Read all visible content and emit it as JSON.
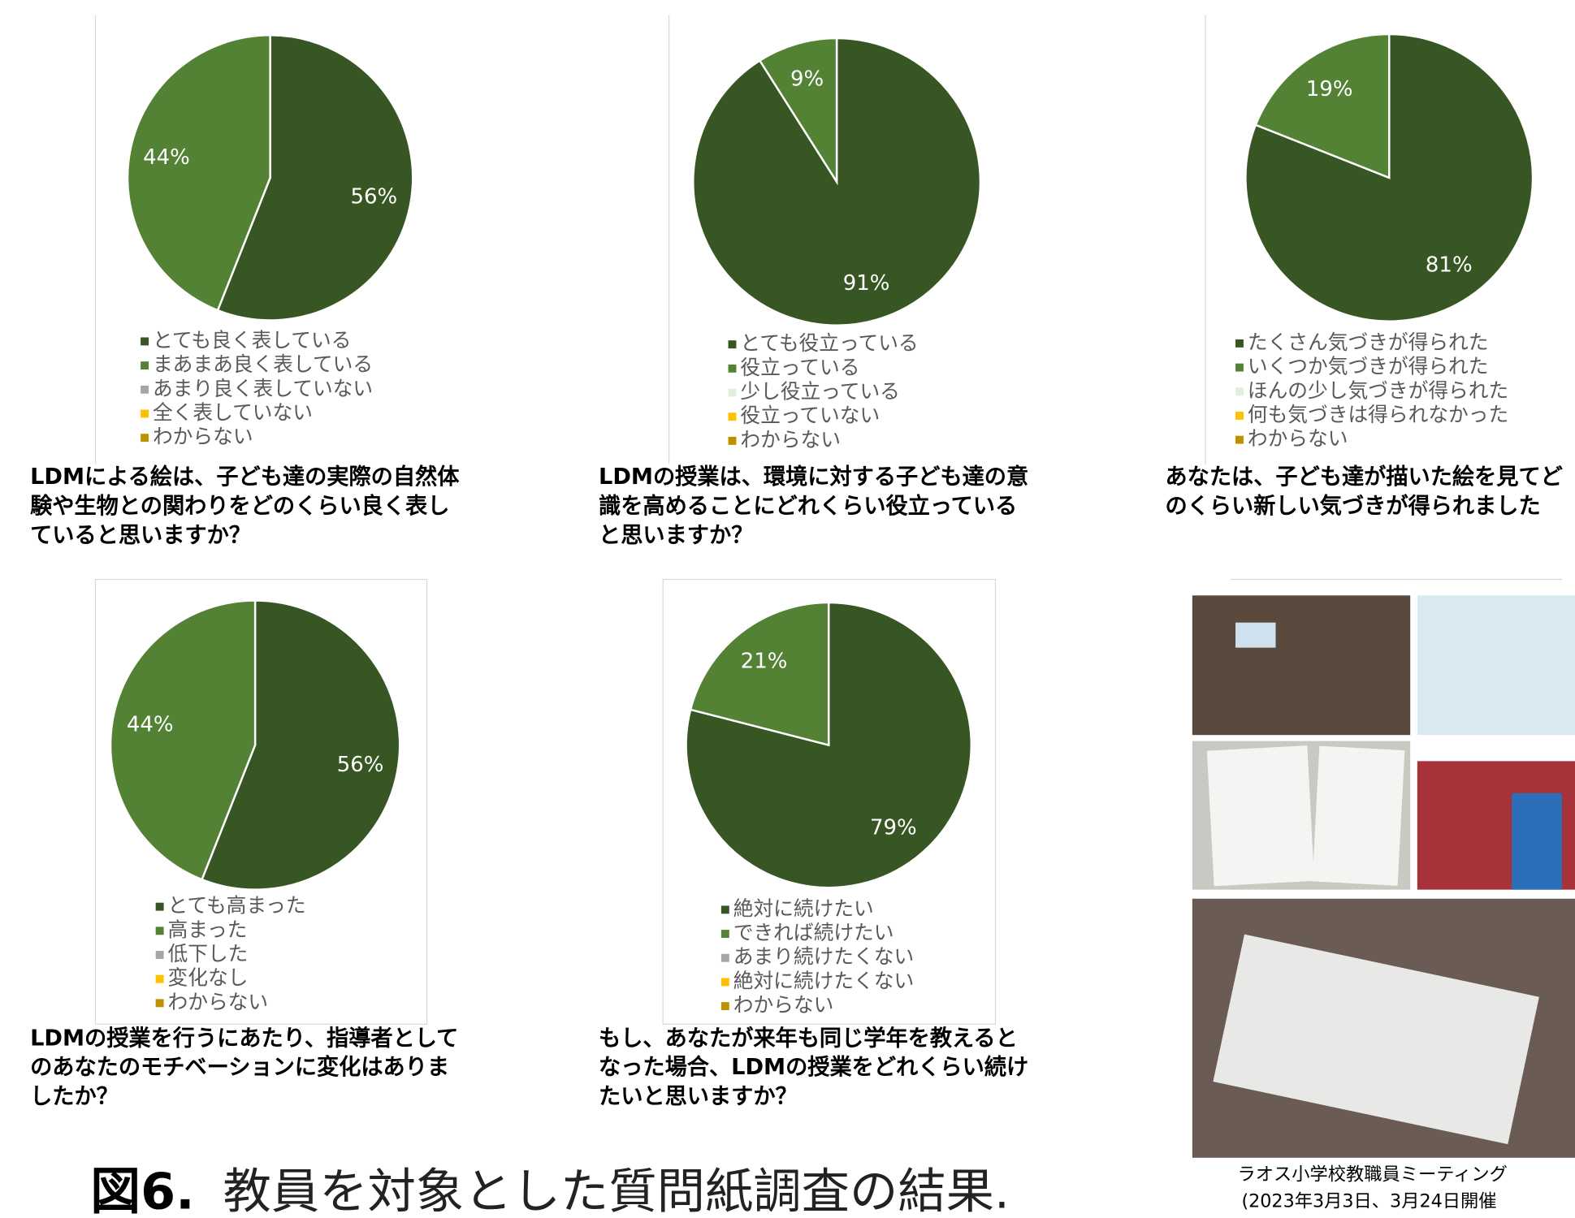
{
  "chart_data": [
    {
      "type": "pie",
      "title": [
        "LDMによる絵は、子ども達の実際の自然体",
        "験や生物との関わりをどのくらい良く表し",
        "ていると思いますか？"
      ],
      "categories": [
        "とても良く表している",
        "まあまあ良く表している",
        "あまり良く表していない",
        "全く表していない",
        "わからない"
      ],
      "values": [
        56,
        44,
        0,
        0,
        0
      ],
      "value_labels": [
        "56%",
        "44%",
        null,
        null,
        null
      ],
      "colors": [
        "#375623",
        "#548235",
        "#a5a5a5",
        "#ffc000",
        "#bf9000"
      ]
    },
    {
      "type": "pie",
      "title": [
        "LDMの授業は、環境に対する子ども達の意",
        "識を高めることにどれくらい役立っている",
        "と思いますか？"
      ],
      "categories": [
        "とても役立っている",
        "役立っている",
        "少し役立っている",
        "役立っていない",
        "わからない"
      ],
      "values": [
        91,
        9,
        0,
        0,
        0
      ],
      "value_labels": [
        "91%",
        "9%",
        null,
        null,
        null
      ],
      "colors": [
        "#375623",
        "#548235",
        "#e2efda",
        "#ffc000",
        "#bf9000"
      ]
    },
    {
      "type": "pie",
      "title": [
        "あなたは、子ども達が描いた絵を見てど",
        "のくらい新しい気づきが得られました"
      ],
      "categories": [
        "たくさん気づきが得られた",
        "いくつか気づきが得られた",
        "ほんの少し気づきが得られた",
        "何も気づきは得られなかった",
        "わからない"
      ],
      "values": [
        81,
        19,
        0,
        0,
        0
      ],
      "value_labels": [
        "81%",
        "19%",
        null,
        null,
        null
      ],
      "colors": [
        "#375623",
        "#548235",
        "#e2efda",
        "#ffc000",
        "#bf9000"
      ]
    },
    {
      "type": "pie",
      "title": [
        "LDMの授業を行うにあたり、指導者として",
        "のあなたのモチベーションに変化はありま",
        "したか？"
      ],
      "categories": [
        "とても高まった",
        "高まった",
        "低下した",
        "変化なし",
        "わからない"
      ],
      "values": [
        56,
        44,
        0,
        0,
        0
      ],
      "value_labels": [
        "56%",
        "44%",
        null,
        null,
        null
      ],
      "colors": [
        "#375623",
        "#548235",
        "#a5a5a5",
        "#ffc000",
        "#bf9000"
      ]
    },
    {
      "type": "pie",
      "title": [
        "もし、あなたが来年も同じ学年を教えると",
        "なった場合、LDMの授業をどれくらい続け",
        "たいと思いますか？"
      ],
      "categories": [
        "絶対に続けたい",
        "できれば続けたい",
        "あまり続けたくない",
        "絶対に続けたくない",
        "わからない"
      ],
      "values": [
        79,
        21,
        0,
        0,
        0
      ],
      "value_labels": [
        "79%",
        "21%",
        null,
        null,
        null
      ],
      "colors": [
        "#375623",
        "#548235",
        "#a5a5a5",
        "#ffc000",
        "#bf9000"
      ]
    }
  ],
  "figure_label": "図6.",
  "figure_caption": "教員を対象とした質問紙調査の結果.",
  "photo_caption": [
    "ラオス小学校教職員ミーティング",
    "(2023年3月3日、3月24日開催"
  ]
}
